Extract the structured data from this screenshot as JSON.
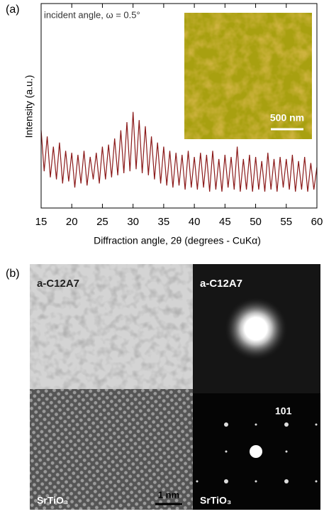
{
  "chart_data": {
    "type": "line",
    "panel_label": "(a)",
    "annotation": "incident angle, ω = 0.5°",
    "inset_scale_label": "500 nm",
    "xlabel": "Diffraction angle, 2θ (degrees - CuKα)",
    "ylabel": "Intensity (a.u.)",
    "color": "#8b1a1a",
    "x": [
      15,
      15.5,
      16,
      16.5,
      17,
      17.5,
      18,
      18.5,
      19,
      19.5,
      20,
      20.5,
      21,
      21.5,
      22,
      22.5,
      23,
      23.5,
      24,
      24.5,
      25,
      25.5,
      26,
      26.5,
      27,
      27.5,
      28,
      28.5,
      29,
      29.5,
      30,
      30.5,
      31,
      31.5,
      32,
      32.5,
      33,
      33.5,
      34,
      34.5,
      35,
      35.5,
      36,
      36.5,
      37,
      37.5,
      38,
      38.5,
      39,
      39.5,
      40,
      40.5,
      41,
      41.5,
      42,
      42.5,
      43,
      43.5,
      44,
      44.5,
      45,
      45.5,
      46,
      46.5,
      47,
      47.5,
      48,
      48.5,
      49,
      49.5,
      50,
      50.5,
      51,
      51.5,
      52,
      52.5,
      53,
      53.5,
      54,
      54.5,
      55,
      55.5,
      56,
      56.5,
      57,
      57.5,
      58,
      58.5,
      59,
      59.5,
      60
    ],
    "values": [
      38,
      18,
      35,
      15,
      30,
      14,
      32,
      12,
      28,
      13,
      27,
      10,
      26,
      12,
      28,
      11,
      25,
      14,
      27,
      12,
      30,
      14,
      31,
      15,
      34,
      16,
      38,
      17,
      42,
      18,
      47,
      19,
      43,
      17,
      40,
      16,
      35,
      14,
      32,
      12,
      30,
      11,
      28,
      10,
      27,
      11,
      26,
      9,
      28,
      10,
      25,
      9,
      27,
      10,
      26,
      8,
      28,
      9,
      24,
      8,
      26,
      10,
      25,
      9,
      30,
      8,
      24,
      9,
      26,
      8,
      25,
      9,
      23,
      8,
      27,
      9,
      24,
      8,
      25,
      10,
      24,
      9,
      26,
      8,
      23,
      9,
      25,
      8,
      22,
      9,
      20
    ],
    "xlim": [
      15,
      60
    ],
    "xticks": [
      15,
      20,
      25,
      30,
      35,
      40,
      45,
      50,
      55,
      60
    ],
    "ylim": [
      0,
      100
    ]
  },
  "panel_b": {
    "panel_label": "(b)",
    "amorphous_image_label": "a-C12A7",
    "amorphous_diffraction_label": "a-C12A7",
    "substrate_image_label": "SrTiO₃",
    "substrate_diffraction_label": "SrTiO₃",
    "scale_label": "1 nm",
    "spot_label": "101"
  }
}
